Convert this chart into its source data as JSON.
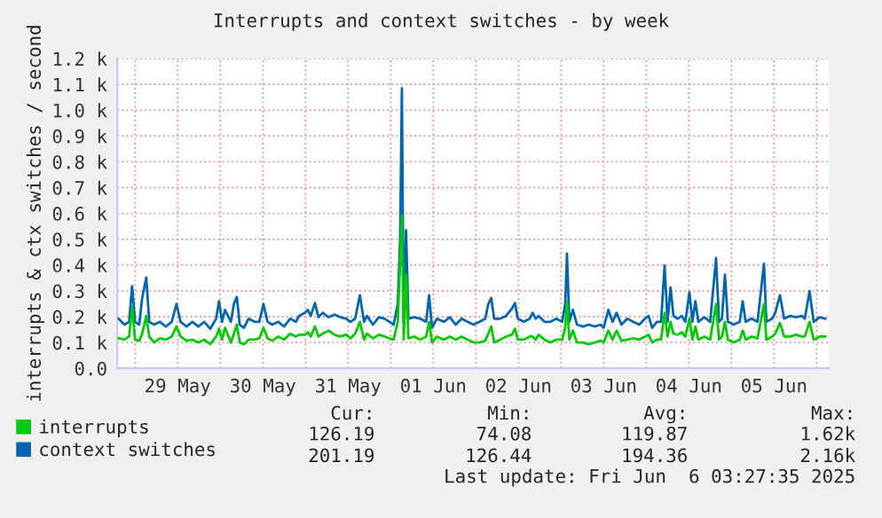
{
  "chart_data": {
    "type": "line",
    "title": "Interrupts and context switches - by week",
    "ylabel": "interrupts & ctx switches / second",
    "x": [
      "2025-05-28T19:20",
      "2025-05-28T21:00",
      "2025-05-28T22:20",
      "2025-05-28T23:10",
      "2025-05-29T00:00",
      "2025-05-29T01:10",
      "2025-05-29T02:00",
      "2025-05-29T03:10",
      "2025-05-29T04:00",
      "2025-05-29T05:20",
      "2025-05-29T07:00",
      "2025-05-29T08:40",
      "2025-05-29T10:20",
      "2025-05-29T11:40",
      "2025-05-29T12:50",
      "2025-05-29T14:30",
      "2025-05-29T16:10",
      "2025-05-29T17:50",
      "2025-05-29T19:30",
      "2025-05-29T21:10",
      "2025-05-29T22:50",
      "2025-05-29T23:40",
      "2025-05-30T00:30",
      "2025-05-30T01:20",
      "2025-05-30T03:00",
      "2025-05-30T03:50",
      "2025-05-30T04:40",
      "2025-05-30T05:30",
      "2025-05-30T06:40",
      "2025-05-30T08:00",
      "2025-05-30T09:40",
      "2025-05-30T11:00",
      "2025-05-30T12:10",
      "2025-05-30T13:20",
      "2025-05-30T14:40",
      "2025-05-30T16:20",
      "2025-05-30T18:00",
      "2025-05-30T19:40",
      "2025-05-30T21:20",
      "2025-05-30T22:10",
      "2025-05-30T23:50",
      "2025-05-31T00:40",
      "2025-05-31T01:30",
      "2025-05-31T02:40",
      "2025-05-31T03:40",
      "2025-05-31T04:50",
      "2025-05-31T06:30",
      "2025-05-31T08:10",
      "2025-05-31T09:50",
      "2025-05-31T11:30",
      "2025-05-31T12:40",
      "2025-05-31T14:00",
      "2025-05-31T15:20",
      "2025-05-31T16:30",
      "2025-05-31T17:20",
      "2025-05-31T19:00",
      "2025-05-31T20:40",
      "2025-05-31T22:20",
      "2025-05-31T23:40",
      "2025-06-01T00:50",
      "2025-06-01T02:00",
      "2025-06-01T02:40",
      "2025-06-01T03:10",
      "2025-06-01T03:40",
      "2025-06-01T04:20",
      "2025-06-01T05:00",
      "2025-06-01T06:40",
      "2025-06-01T08:20",
      "2025-06-01T10:00",
      "2025-06-01T10:50",
      "2025-06-01T11:40",
      "2025-06-01T13:00",
      "2025-06-01T15:00",
      "2025-06-01T16:40",
      "2025-06-01T18:20",
      "2025-06-01T20:00",
      "2025-06-01T21:40",
      "2025-06-01T23:20",
      "2025-06-02T01:00",
      "2025-06-02T02:40",
      "2025-06-02T03:30",
      "2025-06-02T04:20",
      "2025-06-02T05:10",
      "2025-06-02T06:50",
      "2025-06-02T08:30",
      "2025-06-02T10:10",
      "2025-06-02T11:00",
      "2025-06-02T11:50",
      "2025-06-02T13:30",
      "2025-06-02T15:10",
      "2025-06-02T16:00",
      "2025-06-02T16:50",
      "2025-06-02T17:40",
      "2025-06-02T19:20",
      "2025-06-02T21:00",
      "2025-06-02T22:40",
      "2025-06-03T00:20",
      "2025-06-03T01:10",
      "2025-06-03T01:40",
      "2025-06-03T02:20",
      "2025-06-03T03:20",
      "2025-06-03T04:30",
      "2025-06-03T06:10",
      "2025-06-03T07:50",
      "2025-06-03T09:30",
      "2025-06-03T11:10",
      "2025-06-03T12:00",
      "2025-06-03T13:20",
      "2025-06-03T14:30",
      "2025-06-03T15:40",
      "2025-06-03T17:00",
      "2025-06-03T18:40",
      "2025-06-03T20:20",
      "2025-06-03T22:00",
      "2025-06-03T23:40",
      "2025-06-04T00:40",
      "2025-06-04T01:40",
      "2025-06-04T03:00",
      "2025-06-04T04:10",
      "2025-06-04T05:10",
      "2025-06-04T06:00",
      "2025-06-04T06:50",
      "2025-06-04T07:40",
      "2025-06-04T08:50",
      "2025-06-04T10:00",
      "2025-06-04T11:00",
      "2025-06-04T12:10",
      "2025-06-04T13:00",
      "2025-06-04T13:50",
      "2025-06-04T14:40",
      "2025-06-04T16:20",
      "2025-06-04T18:00",
      "2025-06-04T19:40",
      "2025-06-04T20:30",
      "2025-06-04T21:20",
      "2025-06-04T22:10",
      "2025-06-04T23:00",
      "2025-06-05T00:40",
      "2025-06-05T02:20",
      "2025-06-05T03:10",
      "2025-06-05T04:00",
      "2025-06-05T05:40",
      "2025-06-05T07:20",
      "2025-06-05T09:10",
      "2025-06-05T09:50",
      "2025-06-05T11:30",
      "2025-06-05T12:20",
      "2025-06-05T13:40",
      "2025-06-05T14:50",
      "2025-06-05T16:30",
      "2025-06-05T18:10",
      "2025-06-05T19:50",
      "2025-06-05T20:40",
      "2025-06-05T22:00",
      "2025-06-05T23:10",
      "2025-06-06T00:50",
      "2025-06-06T02:30"
    ],
    "series": [
      {
        "name": "interrupts",
        "color": "#00cc00",
        "values": [
          116,
          111,
          123,
          237,
          111,
          107,
          134,
          203,
          123,
          100,
          116,
          111,
          123,
          162,
          123,
          107,
          111,
          100,
          111,
          93,
          123,
          153,
          111,
          157,
          100,
          134,
          169,
          100,
          93,
          111,
          111,
          116,
          157,
          116,
          107,
          123,
          111,
          134,
          123,
          130,
          130,
          139,
          123,
          162,
          123,
          134,
          146,
          130,
          123,
          130,
          116,
          134,
          180,
          111,
          134,
          116,
          130,
          123,
          116,
          111,
          180,
          409,
          592,
          111,
          363,
          116,
          123,
          111,
          123,
          180,
          100,
          123,
          111,
          123,
          111,
          123,
          111,
          100,
          100,
          107,
          134,
          162,
          100,
          111,
          123,
          130,
          153,
          111,
          111,
          123,
          123,
          111,
          130,
          111,
          100,
          111,
          111,
          157,
          260,
          111,
          146,
          100,
          100,
          93,
          100,
          107,
          100,
          146,
          111,
          146,
          107,
          111,
          116,
          111,
          123,
          130,
          100,
          111,
          111,
          215,
          123,
          180,
          134,
          130,
          139,
          123,
          192,
          111,
          162,
          111,
          123,
          111,
          249,
          111,
          123,
          180,
          111,
          100,
          111,
          146,
          111,
          123,
          116,
          249,
          111,
          123,
          134,
          176,
          123,
          123,
          130,
          123,
          123,
          180,
          111,
          123,
          123
        ]
      },
      {
        "name": "context switches",
        "color": "#0066b3",
        "values": [
          192,
          169,
          180,
          318,
          180,
          169,
          272,
          352,
          180,
          169,
          180,
          162,
          180,
          249,
          180,
          162,
          180,
          162,
          180,
          153,
          192,
          260,
          180,
          226,
          180,
          249,
          276,
          169,
          157,
          192,
          180,
          180,
          249,
          180,
          169,
          180,
          162,
          192,
          180,
          203,
          215,
          226,
          203,
          253,
          198,
          215,
          198,
          208,
          198,
          192,
          180,
          192,
          283,
          180,
          203,
          169,
          198,
          192,
          180,
          169,
          249,
          501,
          1085,
          180,
          535,
          192,
          198,
          192,
          180,
          283,
          157,
          192,
          180,
          198,
          169,
          192,
          180,
          169,
          180,
          192,
          249,
          272,
          192,
          192,
          203,
          231,
          253,
          192,
          180,
          192,
          215,
          192,
          203,
          180,
          180,
          192,
          180,
          249,
          444,
          180,
          226,
          169,
          162,
          169,
          162,
          169,
          157,
          226,
          180,
          215,
          169,
          192,
          180,
          169,
          192,
          203,
          157,
          180,
          180,
          398,
          180,
          313,
          203,
          192,
          203,
          180,
          295,
          180,
          260,
          180,
          198,
          180,
          427,
          180,
          192,
          363,
          180,
          169,
          180,
          260,
          180,
          192,
          180,
          405,
          180,
          192,
          215,
          283,
          192,
          203,
          198,
          203,
          192,
          299,
          180,
          198,
          192
        ]
      }
    ],
    "xlim": [
      "2025-05-28T19:00",
      "2025-06-06T03:30"
    ],
    "xticks": [
      {
        "value": "2025-05-29T00:00",
        "label": null
      },
      {
        "value": "2025-05-29T12:00",
        "label": "29 May"
      },
      {
        "value": "2025-05-30T00:00",
        "label": null
      },
      {
        "value": "2025-05-30T12:00",
        "label": "30 May"
      },
      {
        "value": "2025-05-31T00:00",
        "label": null
      },
      {
        "value": "2025-05-31T12:00",
        "label": "31 May"
      },
      {
        "value": "2025-06-01T00:00",
        "label": null
      },
      {
        "value": "2025-06-01T12:00",
        "label": "01 Jun"
      },
      {
        "value": "2025-06-02T00:00",
        "label": null
      },
      {
        "value": "2025-06-02T12:00",
        "label": "02 Jun"
      },
      {
        "value": "2025-06-03T00:00",
        "label": null
      },
      {
        "value": "2025-06-03T12:00",
        "label": "03 Jun"
      },
      {
        "value": "2025-06-04T00:00",
        "label": null
      },
      {
        "value": "2025-06-04T12:00",
        "label": "04 Jun"
      },
      {
        "value": "2025-06-05T00:00",
        "label": null
      },
      {
        "value": "2025-06-05T12:00",
        "label": "05 Jun"
      },
      {
        "value": "2025-06-06T00:00",
        "label": null
      }
    ],
    "ylim": [
      0,
      1200
    ],
    "yticks": [
      {
        "value": 0,
        "label": "0.0"
      },
      {
        "value": 100,
        "label": "0.1 k"
      },
      {
        "value": 200,
        "label": "0.2 k"
      },
      {
        "value": 300,
        "label": "0.3 k"
      },
      {
        "value": 400,
        "label": "0.4 k"
      },
      {
        "value": 500,
        "label": "0.5 k"
      },
      {
        "value": 600,
        "label": "0.6 k"
      },
      {
        "value": 700,
        "label": "0.7 k"
      },
      {
        "value": 800,
        "label": "0.8 k"
      },
      {
        "value": 900,
        "label": "0.9 k"
      },
      {
        "value": 1000,
        "label": "1.0 k"
      },
      {
        "value": 1100,
        "label": "1.1 k"
      },
      {
        "value": 1200,
        "label": "1.2 k"
      }
    ],
    "grid": true,
    "legend": "bottom left",
    "line_style": "solid",
    "marker": "none",
    "annotations": [
      "Cur:",
      "Min:",
      "Avg:",
      "Max:",
      "126.19",
      "74.08",
      "119.87",
      "1.62k",
      "201.19",
      "126.44",
      "194.36",
      "2.16k",
      "Last update: Fri Jun  6 03:27:35 2025"
    ]
  }
}
